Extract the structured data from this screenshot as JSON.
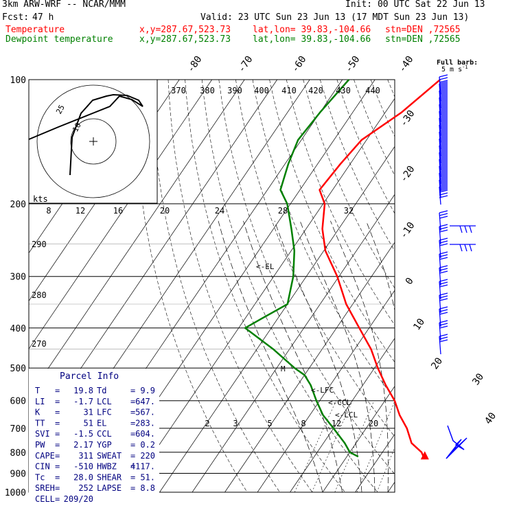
{
  "header": {
    "model": "3km ARW-WRF -- NCAR/MMM",
    "init": "Init: 00 UTC Sat 22 Jun 13",
    "fcst_label": "Fcst:",
    "fcst_value": "47 h",
    "valid": "Valid: 23 UTC Sun 23 Jun 13 (17 MDT Sun 23 Jun 13)",
    "temp_label": "Temperature",
    "dew_label": "Dewpoint temperature",
    "xy": "x,y=287.67,523.73",
    "latlon": "lat,lon= 39.83,-104.66",
    "stn": "stn=DEN ,72565"
  },
  "colors": {
    "temperature": "#ff0000",
    "dewpoint": "#008000",
    "barbs": "#0000ff",
    "parcel_info": "#000080"
  },
  "barb_key": {
    "title": "Full barb:",
    "value": "5 m s",
    "sup": "-1"
  },
  "hodograph": {
    "units": "kts",
    "ring_labels": [
      "10",
      "25"
    ]
  },
  "parcel_info": {
    "title": "Parcel Info",
    "rows": [
      [
        "T",
        "19.8",
        "Td",
        "9.9"
      ],
      [
        "LI",
        "-1.7",
        "LCL",
        "647."
      ],
      [
        "K",
        "31",
        "LFC",
        "567."
      ],
      [
        "TT",
        "51",
        "EL",
        "283."
      ],
      [
        "SVI",
        "-1.5",
        "CCL",
        "604."
      ],
      [
        "PW",
        "2.17",
        "YGP",
        "0.2"
      ],
      [
        "CAPE",
        "311",
        "SWEAT",
        "220"
      ],
      [
        "CIN",
        "-510",
        "HWBZ",
        "4117."
      ],
      [
        "Tc",
        "28.0",
        "SHEAR",
        "51."
      ],
      [
        "SREH",
        "252",
        "LAPSE",
        "8.8"
      ],
      [
        "CELL",
        "209/20",
        "",
        ""
      ]
    ]
  },
  "level_labels": {
    "el": "<-EL",
    "lfc": "<-LFC",
    "ccl": "<-CCL",
    "lcl": "<-LCL",
    "m": "M"
  },
  "chart_data": {
    "type": "line",
    "title": "",
    "xlabel": "",
    "ylabel": "",
    "y_axis": {
      "scale": "log",
      "units": "hPa",
      "ticks": [
        100,
        200,
        300,
        400,
        500,
        600,
        700,
        800,
        900,
        1000
      ]
    },
    "isotherm_labels": [
      "-80",
      "-70",
      "-60",
      "-50",
      "-40",
      "-30",
      "-20",
      "-10",
      "0",
      "10",
      "20",
      "30",
      "40"
    ],
    "theta_labels_top": [
      "370",
      "380",
      "390",
      "400",
      "410",
      "420",
      "430",
      "440"
    ],
    "mixing_ratio_labels": [
      "2",
      "3",
      "5",
      "8",
      "12",
      "20"
    ],
    "inset_temp_labels": [
      "8",
      "12",
      "16",
      "20",
      "24",
      "28",
      "32"
    ],
    "inset_theta_labels": [
      "290",
      "280",
      "270"
    ],
    "series": [
      {
        "name": "Temperature",
        "p": [
          820,
          800,
          760,
          700,
          650,
          600,
          550,
          500,
          450,
          400,
          350,
          300,
          260,
          230,
          200,
          185,
          160,
          140,
          120,
          100
        ],
        "t": [
          23.5,
          22.0,
          17.0,
          12.5,
          7.5,
          3.0,
          -3.0,
          -9.0,
          -15.0,
          -23.0,
          -32.0,
          -40.5,
          -49.5,
          -55.0,
          -59.5,
          -64.0,
          -63.0,
          -61.5,
          -55.0,
          -50.0
        ]
      },
      {
        "name": "Dewpoint temperature",
        "p": [
          820,
          800,
          760,
          700,
          650,
          600,
          550,
          520,
          500,
          450,
          400,
          380,
          350,
          300,
          260,
          230,
          200,
          185,
          160,
          140,
          120,
          100
        ],
        "t": [
          3.5,
          0.0,
          -3.5,
          -10.0,
          -16.0,
          -21.0,
          -26.0,
          -30.0,
          -34.5,
          -45.0,
          -58.0,
          -55.0,
          -50.0,
          -54.0,
          -59.0,
          -64.5,
          -71.0,
          -76.0,
          -79.0,
          -81.0,
          -80.0,
          -78.0
        ]
      }
    ]
  }
}
